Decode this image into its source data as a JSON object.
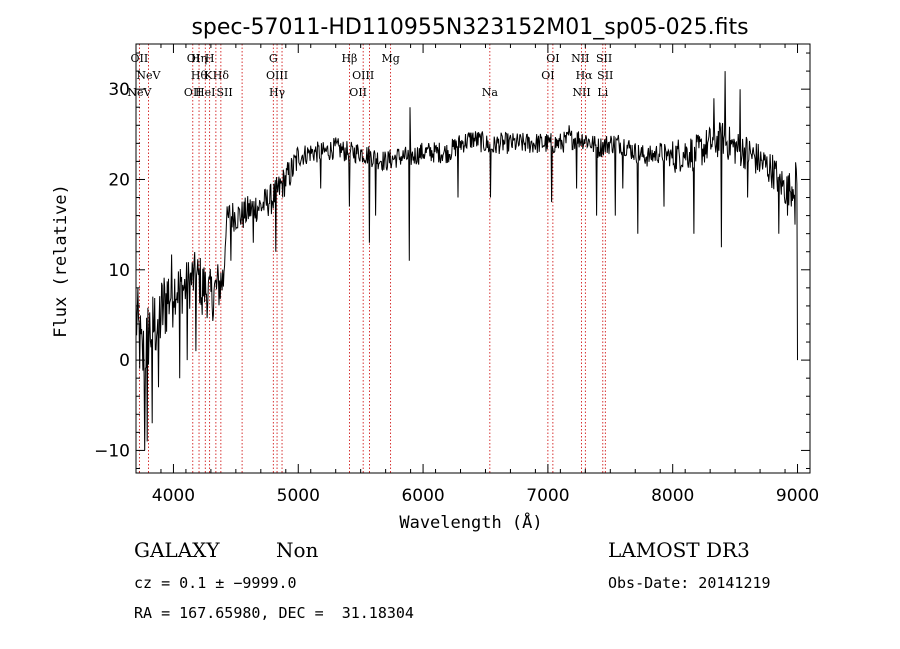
{
  "chart_data": {
    "type": "line",
    "title": "spec-57011-HD110955N323152M01_sp05-025.fits",
    "xlabel": "Wavelength (Å)",
    "ylabel": "Flux (relative)",
    "xlim": [
      3700,
      9100
    ],
    "ylim": [
      -12.5,
      35
    ],
    "xticks": [
      4000,
      5000,
      6000,
      7000,
      8000,
      9000
    ],
    "yticks": [
      -10,
      0,
      10,
      20,
      30
    ],
    "series": [
      {
        "name": "flux",
        "anchors": [
          [
            3700,
            5
          ],
          [
            3750,
            0
          ],
          [
            3800,
            3
          ],
          [
            3850,
            4
          ],
          [
            3900,
            5
          ],
          [
            3950,
            7
          ],
          [
            4000,
            8
          ],
          [
            4050,
            8
          ],
          [
            4100,
            8
          ],
          [
            4150,
            9
          ],
          [
            4200,
            9
          ],
          [
            4250,
            8
          ],
          [
            4300,
            7
          ],
          [
            4350,
            8
          ],
          [
            4400,
            9
          ],
          [
            4420,
            15
          ],
          [
            4450,
            16
          ],
          [
            4500,
            16
          ],
          [
            4550,
            16
          ],
          [
            4600,
            16.5
          ],
          [
            4650,
            17
          ],
          [
            4700,
            17
          ],
          [
            4750,
            17.5
          ],
          [
            4800,
            18
          ],
          [
            4850,
            19
          ],
          [
            4900,
            20
          ],
          [
            4950,
            21
          ],
          [
            5000,
            22.5
          ],
          [
            5100,
            23
          ],
          [
            5200,
            23
          ],
          [
            5300,
            23.5
          ],
          [
            5400,
            23
          ],
          [
            5500,
            23
          ],
          [
            5600,
            22.5
          ],
          [
            5700,
            22
          ],
          [
            5800,
            22.5
          ],
          [
            5900,
            22.5
          ],
          [
            6000,
            23
          ],
          [
            6100,
            23
          ],
          [
            6200,
            23
          ],
          [
            6300,
            24
          ],
          [
            6400,
            24.5
          ],
          [
            6500,
            24
          ],
          [
            6550,
            23.5
          ],
          [
            6600,
            24
          ],
          [
            6700,
            24
          ],
          [
            6800,
            24
          ],
          [
            6900,
            24
          ],
          [
            7000,
            24
          ],
          [
            7100,
            24
          ],
          [
            7200,
            24.5
          ],
          [
            7300,
            24.5
          ],
          [
            7400,
            23.5
          ],
          [
            7500,
            24
          ],
          [
            7600,
            24
          ],
          [
            7700,
            23
          ],
          [
            7800,
            22.5
          ],
          [
            7900,
            23
          ],
          [
            8000,
            22.5
          ],
          [
            8100,
            23
          ],
          [
            8200,
            23
          ],
          [
            8300,
            24
          ],
          [
            8400,
            24.5
          ],
          [
            8500,
            23.5
          ],
          [
            8600,
            23
          ],
          [
            8700,
            22
          ],
          [
            8800,
            21
          ],
          [
            8900,
            19
          ],
          [
            8950,
            19
          ],
          [
            9000,
            20.5
          ]
        ],
        "features": [
          [
            3770,
            -10
          ],
          [
            3790,
            -9
          ],
          [
            3830,
            -7
          ],
          [
            3880,
            -3
          ],
          [
            4050,
            -2
          ],
          [
            4110,
            0
          ],
          [
            4180,
            1
          ],
          [
            4230,
            5
          ],
          [
            4320,
            5
          ],
          [
            4460,
            11
          ],
          [
            4640,
            13
          ],
          [
            4820,
            12
          ],
          [
            5180,
            19
          ],
          [
            5410,
            17
          ],
          [
            5570,
            13
          ],
          [
            5620,
            16
          ],
          [
            5890,
            11
          ],
          [
            5895,
            28
          ],
          [
            6280,
            18
          ],
          [
            6540,
            18
          ],
          [
            7030,
            17.5
          ],
          [
            7170,
            26
          ],
          [
            7230,
            19
          ],
          [
            7390,
            16
          ],
          [
            7540,
            16
          ],
          [
            7600,
            19
          ],
          [
            7720,
            14
          ],
          [
            7930,
            17
          ],
          [
            8170,
            14
          ],
          [
            8330,
            29
          ],
          [
            8390,
            12.5
          ],
          [
            8420,
            32
          ],
          [
            8540,
            30
          ],
          [
            8600,
            18
          ],
          [
            8850,
            14
          ],
          [
            8920,
            16
          ],
          [
            8980,
            15
          ],
          [
            9000,
            0
          ]
        ]
      }
    ],
    "spectral_lines": [
      {
        "name": "NeV",
        "x": 3727,
        "row": 2
      },
      {
        "name": "NeV",
        "x": 3800,
        "row": 1
      },
      {
        "name": "OII",
        "x": 3727,
        "row": 0
      },
      {
        "name": "OII",
        "x": 4155,
        "row": 2
      },
      {
        "name": "OI",
        "x": 4160,
        "row": 0
      },
      {
        "name": "Hη",
        "x": 4205,
        "row": 0
      },
      {
        "name": "H",
        "x": 4290,
        "row": 0
      },
      {
        "name": "Hθ",
        "x": 4205,
        "row": 1
      },
      {
        "name": "K",
        "x": 4280,
        "row": 1
      },
      {
        "name": "HeI",
        "x": 4255,
        "row": 2
      },
      {
        "name": "Hδ",
        "x": 4380,
        "row": 1
      },
      {
        "name": "SII",
        "x": 4410,
        "row": 2
      },
      {
        "name": "G",
        "x": 4800,
        "row": 0
      },
      {
        "name": "OIII",
        "x": 4830,
        "row": 1
      },
      {
        "name": "Hγ",
        "x": 4830,
        "row": 2
      },
      {
        "name": "Hβ",
        "x": 5410,
        "row": 0
      },
      {
        "name": "Mg",
        "x": 5740,
        "row": 0
      },
      {
        "name": "OIII",
        "x": 5520,
        "row": 1
      },
      {
        "name": "OII",
        "x": 5480,
        "row": 2
      },
      {
        "name": "Na",
        "x": 6535,
        "row": 2
      },
      {
        "name": "OI",
        "x": 7040,
        "row": 0
      },
      {
        "name": "OI",
        "x": 7000,
        "row": 1
      },
      {
        "name": "NII",
        "x": 7260,
        "row": 0
      },
      {
        "name": "SII",
        "x": 7450,
        "row": 0
      },
      {
        "name": "Hα",
        "x": 7290,
        "row": 1
      },
      {
        "name": "SII",
        "x": 7460,
        "row": 1
      },
      {
        "name": "NII",
        "x": 7270,
        "row": 2
      },
      {
        "name": "Li",
        "x": 7440,
        "row": 2
      }
    ],
    "line_markers": [
      3727,
      3800,
      4155,
      4205,
      4255,
      4290,
      4340,
      4380,
      4550,
      4800,
      4830,
      4870,
      5410,
      5520,
      5570,
      5740,
      6535,
      7000,
      7040,
      7270,
      7300,
      7440,
      7460
    ]
  },
  "info": {
    "class": "GALAXY",
    "subclass": "Non",
    "survey": "LAMOST DR3",
    "cz": "cz = 0.1 ± −9999.0",
    "obs_date": "Obs-Date: 20141219",
    "coords": "RA = 167.65980, DEC =  31.18304"
  },
  "colors": {
    "spectrum": "#000000",
    "marker": "#cc0000",
    "axis": "#000000"
  }
}
